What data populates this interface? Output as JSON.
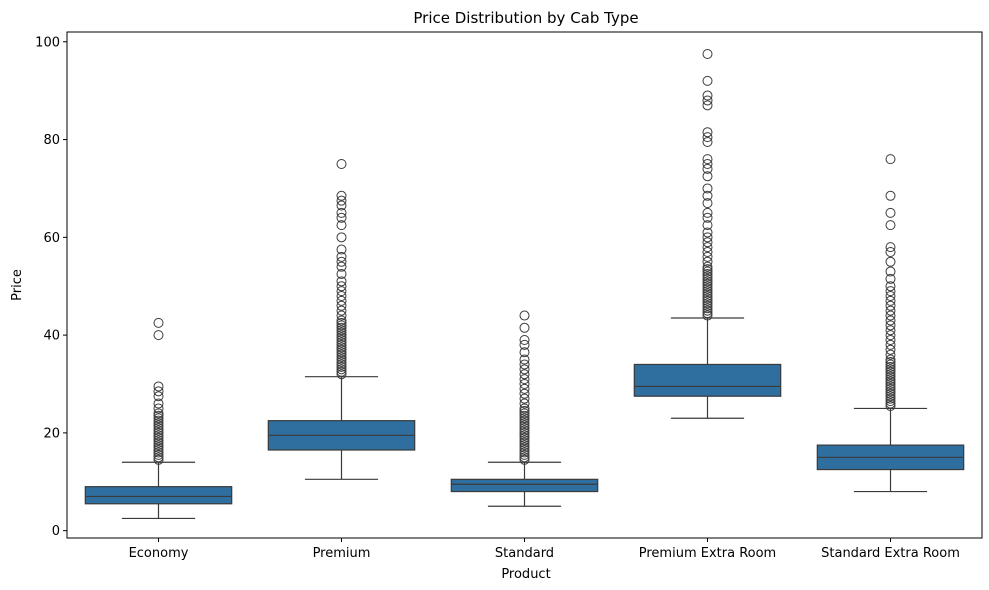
{
  "chart_data": {
    "type": "box",
    "title": "Price Distribution by Cab Type",
    "xlabel": "Product",
    "ylabel": "Price",
    "ylim": [
      -1.5,
      102
    ],
    "yticks": [
      0,
      20,
      40,
      60,
      80,
      100
    ],
    "grid": false,
    "legend": "none",
    "color": "#2f6f9f",
    "categories": [
      "Economy",
      "Premium",
      "Standard",
      "Premium Extra Room",
      "Standard Extra Room"
    ],
    "series": [
      {
        "category": "Economy",
        "whisker_low": 2.5,
        "q1": 5.5,
        "median": 7.0,
        "q3": 9.0,
        "whisker_high": 14.0,
        "outliers": [
          14.5,
          15,
          15.5,
          16,
          16.5,
          17,
          17.5,
          18,
          18.5,
          19,
          19.5,
          20,
          20.5,
          21,
          21.5,
          22,
          22.5,
          23,
          23.5,
          24,
          25,
          26,
          27.5,
          28.5,
          29.5,
          40,
          42.5
        ]
      },
      {
        "category": "Premium",
        "whisker_low": 10.5,
        "q1": 16.5,
        "median": 19.5,
        "q3": 22.5,
        "whisker_high": 31.5,
        "outliers": [
          32,
          32.5,
          33,
          33.5,
          34,
          34.5,
          35,
          35.5,
          36,
          36.5,
          37,
          37.5,
          38,
          38.5,
          39,
          39.5,
          40,
          40.5,
          41,
          41.5,
          42,
          42.5,
          43,
          44,
          45,
          46,
          47,
          48,
          49,
          50,
          51,
          52.5,
          54,
          55,
          56,
          57.5,
          60,
          62.5,
          64,
          65,
          66.5,
          67.5,
          68.5,
          75
        ]
      },
      {
        "category": "Standard",
        "whisker_low": 5.0,
        "q1": 8.0,
        "median": 9.5,
        "q3": 10.5,
        "whisker_high": 14.0,
        "outliers": [
          14.5,
          15,
          15.5,
          16,
          16.5,
          17,
          17.5,
          18,
          18.5,
          19,
          19.5,
          20,
          20.5,
          21,
          21.5,
          22,
          22.5,
          23,
          23.5,
          24,
          24.5,
          25,
          26,
          27,
          28,
          29,
          30,
          31,
          32,
          33,
          34,
          35,
          36.5,
          38,
          39,
          41.5,
          44
        ]
      },
      {
        "category": "Premium Extra Room",
        "whisker_low": 23.0,
        "q1": 27.5,
        "median": 29.5,
        "q3": 34.0,
        "whisker_high": 43.5,
        "outliers": [
          44,
          44.5,
          45,
          45.5,
          46,
          46.5,
          47,
          47.5,
          48,
          48.5,
          49,
          49.5,
          50,
          50.5,
          51,
          51.5,
          52,
          52.5,
          53,
          53.5,
          54,
          55,
          56,
          57,
          58,
          59,
          60,
          61,
          62.5,
          64,
          65,
          67,
          68.5,
          70,
          72.5,
          74,
          75,
          76,
          79.5,
          80.5,
          81.5,
          87,
          88,
          89,
          92,
          97.5
        ]
      },
      {
        "category": "Standard Extra Room",
        "whisker_low": 8.0,
        "q1": 12.5,
        "median": 15.0,
        "q3": 17.5,
        "whisker_high": 25.0,
        "outliers": [
          25.5,
          26,
          26.5,
          27,
          27.5,
          28,
          28.5,
          29,
          29.5,
          30,
          30.5,
          31,
          31.5,
          32,
          32.5,
          33,
          33.5,
          34,
          34.5,
          35,
          36,
          37,
          38,
          39,
          40,
          41,
          42,
          43,
          44,
          45,
          46,
          47,
          48,
          49,
          50,
          51.5,
          53,
          55,
          57,
          58,
          62.5,
          65,
          68.5,
          76
        ]
      }
    ]
  }
}
